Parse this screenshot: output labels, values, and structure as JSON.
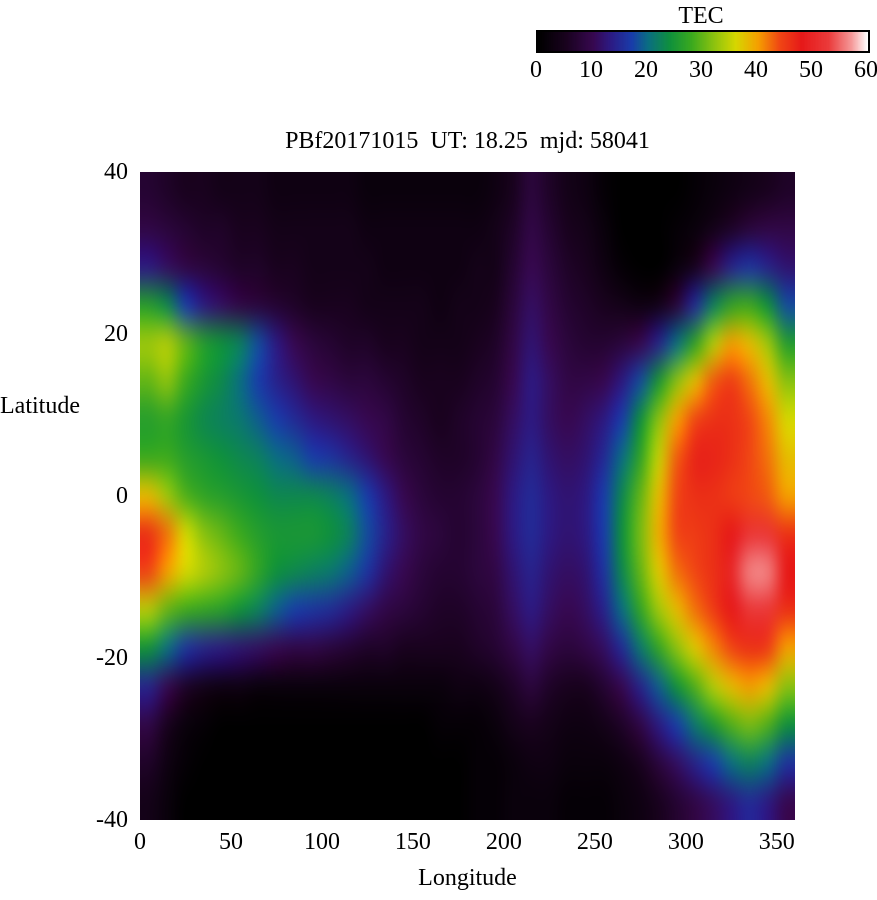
{
  "figure": {
    "background": "#ffffff",
    "text_color": "#000000"
  },
  "colorbar": {
    "title": "TEC",
    "min": 0,
    "max": 60,
    "ticks": [
      0,
      10,
      20,
      30,
      40,
      50,
      60
    ],
    "position": "top-right"
  },
  "plot": {
    "title": "PBf20171015  UT: 18.25  mjd: 58041"
  },
  "axes": {
    "xlabel": "Longitude",
    "ylabel": "Latitude",
    "xticks": [
      0,
      50,
      100,
      150,
      200,
      250,
      300,
      350
    ],
    "yticks": [
      40,
      20,
      0,
      -20,
      -40
    ],
    "xlim": [
      0,
      360
    ],
    "ylim": [
      -40,
      40
    ]
  },
  "chart_data": {
    "type": "heatmap",
    "title": "PBf20171015  UT: 18.25  mjd: 58041",
    "xlabel": "Longitude",
    "ylabel": "Latitude",
    "colorbar_label": "TEC",
    "xlim": [
      0,
      360
    ],
    "ylim": [
      -40,
      40
    ],
    "zlim": [
      0,
      60
    ],
    "grid": false,
    "colorbar_position": "top-right",
    "lon": [
      0,
      10,
      20,
      30,
      40,
      50,
      60,
      70,
      80,
      90,
      100,
      110,
      120,
      130,
      140,
      150,
      160,
      170,
      180,
      190,
      200,
      210,
      220,
      230,
      240,
      250,
      260,
      270,
      280,
      290,
      300,
      310,
      320,
      330,
      340,
      350
    ],
    "lat": [
      40,
      35,
      30,
      25,
      20,
      15,
      10,
      5,
      0,
      -5,
      -10,
      -15,
      -20,
      -25,
      -30,
      -35,
      -40
    ],
    "values": [
      [
        7,
        6,
        5,
        5,
        4,
        4,
        4,
        3,
        3,
        3,
        3,
        3,
        2,
        2,
        2,
        2,
        2,
        2,
        2,
        3,
        5,
        8,
        6,
        4,
        3,
        1,
        0,
        0,
        0,
        0,
        1,
        2,
        3,
        4,
        5,
        6
      ],
      [
        9,
        8,
        7,
        6,
        6,
        5,
        5,
        4,
        4,
        4,
        4,
        4,
        3,
        3,
        3,
        3,
        3,
        3,
        3,
        4,
        6,
        9,
        7,
        5,
        4,
        2,
        0,
        0,
        0,
        1,
        2,
        4,
        6,
        8,
        9,
        9
      ],
      [
        13,
        11,
        9,
        8,
        7,
        6,
        6,
        5,
        5,
        4,
        4,
        4,
        4,
        3,
        3,
        3,
        3,
        3,
        4,
        4,
        7,
        10,
        8,
        6,
        5,
        3,
        1,
        0,
        0,
        2,
        5,
        10,
        14,
        16,
        14,
        12
      ],
      [
        26,
        23,
        17,
        13,
        11,
        9,
        8,
        7,
        6,
        5,
        5,
        5,
        4,
        4,
        4,
        4,
        3,
        4,
        4,
        5,
        8,
        11,
        9,
        7,
        6,
        5,
        4,
        3,
        4,
        8,
        15,
        22,
        27,
        28,
        24,
        18
      ],
      [
        33,
        34,
        30,
        26,
        24,
        22,
        18,
        13,
        10,
        8,
        7,
        6,
        6,
        5,
        5,
        4,
        4,
        4,
        5,
        6,
        9,
        12,
        10,
        8,
        7,
        7,
        8,
        10,
        14,
        20,
        27,
        34,
        40,
        38,
        33,
        26
      ],
      [
        30,
        32,
        28,
        25,
        23,
        20,
        17,
        14,
        12,
        10,
        9,
        8,
        8,
        7,
        6,
        5,
        5,
        5,
        6,
        7,
        10,
        13,
        11,
        9,
        9,
        10,
        13,
        18,
        25,
        32,
        38,
        43,
        45,
        42,
        38,
        32
      ],
      [
        26,
        27,
        25,
        23,
        22,
        21,
        19,
        17,
        15,
        13,
        12,
        11,
        10,
        9,
        7,
        6,
        5,
        6,
        7,
        8,
        11,
        13,
        11,
        10,
        11,
        13,
        17,
        24,
        32,
        40,
        44,
        46,
        46,
        44,
        41,
        36
      ],
      [
        28,
        28,
        26,
        25,
        24,
        23,
        22,
        20,
        19,
        17,
        16,
        14,
        12,
        10,
        8,
        7,
        6,
        6,
        7,
        9,
        12,
        14,
        12,
        11,
        12,
        15,
        20,
        27,
        35,
        43,
        47,
        47,
        46,
        44,
        42,
        38
      ],
      [
        38,
        33,
        29,
        27,
        26,
        25,
        24,
        23,
        23,
        23,
        22,
        20,
        17,
        13,
        10,
        8,
        7,
        7,
        8,
        10,
        13,
        15,
        13,
        12,
        13,
        17,
        23,
        30,
        38,
        44,
        46,
        46,
        45,
        44,
        43,
        40
      ],
      [
        46,
        42,
        36,
        32,
        30,
        28,
        26,
        25,
        25,
        25,
        24,
        22,
        18,
        14,
        11,
        9,
        8,
        7,
        8,
        10,
        13,
        15,
        13,
        12,
        13,
        17,
        24,
        31,
        39,
        44,
        45,
        46,
        48,
        52,
        52,
        46
      ],
      [
        44,
        40,
        36,
        34,
        32,
        30,
        27,
        24,
        23,
        22,
        21,
        19,
        16,
        12,
        10,
        8,
        7,
        7,
        8,
        9,
        12,
        14,
        12,
        11,
        12,
        16,
        23,
        30,
        37,
        42,
        44,
        46,
        50,
        56,
        56,
        48
      ],
      [
        34,
        30,
        28,
        27,
        26,
        24,
        22,
        19,
        17,
        16,
        15,
        13,
        11,
        9,
        8,
        7,
        6,
        6,
        7,
        8,
        11,
        13,
        11,
        10,
        11,
        14,
        20,
        27,
        33,
        38,
        42,
        45,
        48,
        52,
        52,
        46
      ],
      [
        24,
        20,
        16,
        14,
        13,
        12,
        11,
        10,
        9,
        9,
        8,
        7,
        6,
        6,
        5,
        5,
        5,
        5,
        6,
        7,
        9,
        11,
        9,
        8,
        9,
        11,
        15,
        21,
        27,
        32,
        37,
        41,
        44,
        46,
        45,
        40
      ],
      [
        14,
        10,
        6,
        4,
        3,
        3,
        2,
        2,
        2,
        2,
        2,
        2,
        2,
        2,
        2,
        2,
        2,
        3,
        3,
        4,
        6,
        8,
        6,
        5,
        5,
        7,
        10,
        14,
        19,
        24,
        29,
        34,
        38,
        40,
        38,
        32
      ],
      [
        9,
        5,
        2,
        1,
        0,
        0,
        0,
        0,
        0,
        0,
        0,
        0,
        0,
        0,
        0,
        0,
        1,
        1,
        1,
        2,
        4,
        5,
        4,
        3,
        3,
        4,
        6,
        9,
        13,
        17,
        21,
        25,
        29,
        31,
        29,
        24
      ],
      [
        6,
        3,
        1,
        0,
        0,
        0,
        0,
        0,
        0,
        0,
        0,
        0,
        0,
        0,
        0,
        0,
        0,
        0,
        1,
        1,
        2,
        3,
        3,
        2,
        2,
        2,
        3,
        5,
        8,
        11,
        14,
        17,
        20,
        22,
        20,
        16
      ],
      [
        4,
        2,
        0,
        0,
        0,
        0,
        0,
        0,
        0,
        0,
        0,
        0,
        0,
        0,
        0,
        0,
        0,
        0,
        1,
        1,
        2,
        2,
        2,
        1,
        1,
        1,
        2,
        3,
        5,
        7,
        9,
        11,
        13,
        15,
        13,
        10
      ]
    ],
    "colormap_stops": [
      [
        0,
        0,
        0,
        0
      ],
      [
        5,
        25,
        2,
        30
      ],
      [
        10,
        55,
        8,
        80
      ],
      [
        13,
        45,
        25,
        130
      ],
      [
        17,
        25,
        60,
        170
      ],
      [
        20,
        10,
        110,
        130
      ],
      [
        24,
        15,
        145,
        60
      ],
      [
        28,
        60,
        170,
        30
      ],
      [
        32,
        140,
        195,
        15
      ],
      [
        36,
        215,
        215,
        0
      ],
      [
        40,
        245,
        160,
        0
      ],
      [
        44,
        240,
        70,
        20
      ],
      [
        48,
        230,
        25,
        25
      ],
      [
        53,
        235,
        60,
        60
      ],
      [
        57,
        245,
        150,
        150
      ],
      [
        60,
        255,
        255,
        255
      ]
    ]
  }
}
